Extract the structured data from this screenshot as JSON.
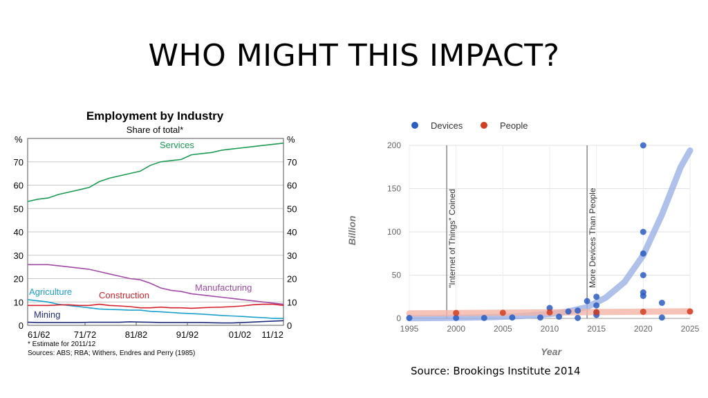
{
  "slide": {
    "title": "WHO MIGHT THIS IMPACT?",
    "source_caption": "Source: Brookings Institute 2014"
  },
  "chart_data": [
    {
      "type": "line",
      "title": "Employment by Industry",
      "subtitle": "Share of total*",
      "ylabel_left": "%",
      "ylabel_right": "%",
      "ylim": [
        0,
        80
      ],
      "yticks": [
        0,
        10,
        20,
        30,
        40,
        50,
        60,
        70
      ],
      "xlim": [
        1961,
        2011
      ],
      "x_tick_labels": [
        "61/62",
        "71/72",
        "81/82",
        "91/92",
        "01/02",
        "11/12"
      ],
      "grid": true,
      "footnote": "*      Estimate for 2011/12",
      "sources": "Sources: ABS; RBA; Withers, Endres and Perry (1985)",
      "series": [
        {
          "name": "Services",
          "color": "#1a9a50",
          "x": [
            1961,
            1963,
            1965,
            1967,
            1969,
            1971,
            1973,
            1975,
            1977,
            1979,
            1981,
            1983,
            1985,
            1987,
            1989,
            1991,
            1993,
            1995,
            1997,
            1999,
            2001,
            2003,
            2005,
            2007,
            2009,
            2011
          ],
          "values": [
            53,
            54,
            54.5,
            56,
            57,
            58,
            59,
            61.5,
            63,
            64,
            65,
            66,
            68.5,
            70,
            70.5,
            71,
            73,
            73.5,
            74,
            75,
            75.5,
            76,
            76.5,
            77,
            77.5,
            78
          ]
        },
        {
          "name": "Manufacturing",
          "color": "#a04aa6",
          "x": [
            1961,
            1963,
            1965,
            1967,
            1969,
            1971,
            1973,
            1975,
            1977,
            1979,
            1981,
            1983,
            1985,
            1987,
            1989,
            1991,
            1993,
            1995,
            1997,
            1999,
            2001,
            2003,
            2005,
            2007,
            2009,
            2011
          ],
          "values": [
            26,
            26,
            26,
            25.5,
            25,
            24.5,
            24,
            23,
            22,
            21,
            20,
            19.5,
            18,
            16,
            15,
            14.5,
            13.5,
            13,
            12.5,
            12,
            11.5,
            11,
            10.5,
            10,
            9.5,
            9
          ]
        },
        {
          "name": "Agriculture",
          "color": "#1aa0cc",
          "x": [
            1961,
            1963,
            1965,
            1967,
            1969,
            1971,
            1973,
            1975,
            1977,
            1979,
            1981,
            1983,
            1985,
            1987,
            1989,
            1991,
            1993,
            1995,
            1997,
            1999,
            2001,
            2003,
            2005,
            2007,
            2009,
            2011
          ],
          "values": [
            11,
            10.5,
            10,
            9,
            8.5,
            8,
            7.5,
            7,
            6.8,
            6.7,
            6.5,
            6.5,
            6,
            5.8,
            5.5,
            5.2,
            5,
            4.8,
            4.5,
            4.2,
            4,
            3.8,
            3.5,
            3.3,
            3,
            3
          ]
        },
        {
          "name": "Construction",
          "color": "#d4202a",
          "x": [
            1961,
            1963,
            1965,
            1967,
            1969,
            1971,
            1973,
            1975,
            1977,
            1979,
            1981,
            1983,
            1985,
            1987,
            1989,
            1991,
            1993,
            1995,
            1997,
            1999,
            2001,
            2003,
            2005,
            2007,
            2009,
            2011
          ],
          "values": [
            8.5,
            8.5,
            8.5,
            8.7,
            8.8,
            8.5,
            8.5,
            9,
            8.5,
            8.3,
            8,
            7.5,
            7.5,
            7.8,
            7.5,
            7.5,
            7.3,
            7.5,
            7.7,
            7.8,
            8,
            8.3,
            8.8,
            9,
            9,
            8.5
          ]
        },
        {
          "name": "Mining",
          "color": "#1e2b7a",
          "x": [
            1961,
            1963,
            1965,
            1967,
            1969,
            1971,
            1973,
            1975,
            1977,
            1979,
            1981,
            1983,
            1985,
            1987,
            1989,
            1991,
            1993,
            1995,
            1997,
            1999,
            2001,
            2003,
            2005,
            2007,
            2009,
            2011
          ],
          "values": [
            1.3,
            1.2,
            1.2,
            1.2,
            1.2,
            1.2,
            1.3,
            1.3,
            1.3,
            1.3,
            1.5,
            1.4,
            1.3,
            1.2,
            1.2,
            1.2,
            1.2,
            1.2,
            1.1,
            1,
            1,
            1.2,
            1.4,
            1.6,
            1.8,
            2
          ]
        }
      ]
    },
    {
      "type": "scatter",
      "xlabel": "Year",
      "ylabel": "Billion",
      "xlim": [
        1995,
        2025
      ],
      "ylim": [
        0,
        200
      ],
      "xticks": [
        1995,
        2000,
        2005,
        2010,
        2015,
        2020,
        2025
      ],
      "yticks": [
        0,
        50,
        100,
        150,
        200
      ],
      "grid": true,
      "legend": "top-left",
      "annotations": [
        {
          "x": 1999,
          "label": "\"Internet of Things\" Coined"
        },
        {
          "x": 2014,
          "label": "More Devices Than People"
        }
      ],
      "series": [
        {
          "name": "Devices",
          "color": "#2a5cc4",
          "points": [
            [
              1995,
              0.5
            ],
            [
              2000,
              0.5
            ],
            [
              2003,
              0.5
            ],
            [
              2006,
              1
            ],
            [
              2009,
              1
            ],
            [
              2010,
              12
            ],
            [
              2011,
              2
            ],
            [
              2012,
              8
            ],
            [
              2013,
              0.5
            ],
            [
              2013,
              9
            ],
            [
              2014,
              20
            ],
            [
              2015,
              25
            ],
            [
              2015,
              15
            ],
            [
              2015,
              7
            ],
            [
              2015,
              4
            ],
            [
              2020,
              200
            ],
            [
              2020,
              100
            ],
            [
              2020,
              75
            ],
            [
              2020,
              50
            ],
            [
              2020,
              30
            ],
            [
              2020,
              26
            ],
            [
              2022,
              18
            ],
            [
              2022,
              1
            ]
          ]
        },
        {
          "name": "People",
          "color": "#d43d1f",
          "points": [
            [
              2000,
              6.3
            ],
            [
              2005,
              6.5
            ],
            [
              2010,
              6.9
            ],
            [
              2015,
              7.2
            ],
            [
              2020,
              7.6
            ],
            [
              2025,
              8
            ]
          ]
        }
      ],
      "trend_bands": [
        {
          "name": "Devices",
          "color": "#9bb1e6",
          "x": [
            1995,
            1998,
            2001,
            2004,
            2007,
            2010,
            2012,
            2014,
            2016,
            2018,
            2020,
            2022,
            2024,
            2025
          ],
          "values": [
            0.2,
            0.5,
            0.9,
            1.5,
            2.8,
            5,
            8,
            13,
            24,
            42,
            73,
            120,
            175,
            194
          ]
        },
        {
          "name": "People",
          "color": "#f2b4a6",
          "x": [
            1995,
            2025
          ],
          "values": [
            5.8,
            8.2
          ]
        }
      ]
    }
  ]
}
